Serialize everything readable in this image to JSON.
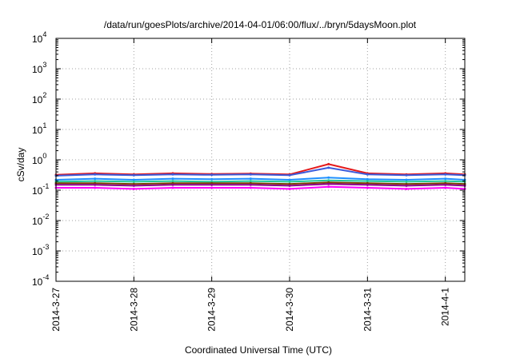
{
  "chart_data": {
    "type": "line",
    "title": "/data/run/goesPlots/archive/2014-04-01/06:00/flux/../bryn/5daysMoon.plot",
    "xlabel": "Coordinated Universal Time (UTC)",
    "ylabel": "cSv/day",
    "yscale": "log",
    "ylim": [
      0.0001,
      10000
    ],
    "xlim": [
      "2014-3-27",
      "2014-4-1 06:00"
    ],
    "grid": true,
    "x_ticks": [
      "2014-3-27",
      "2014-3-28",
      "2014-3-29",
      "2014-3-30",
      "2014-3-31",
      "2014-4-1"
    ],
    "y_ticks": [
      {
        "base": "10",
        "exp": "-4"
      },
      {
        "base": "10",
        "exp": "-3"
      },
      {
        "base": "10",
        "exp": "-2"
      },
      {
        "base": "10",
        "exp": "-1"
      },
      {
        "base": "10",
        "exp": "0"
      },
      {
        "base": "10",
        "exp": "1"
      },
      {
        "base": "10",
        "exp": "2"
      },
      {
        "base": "10",
        "exp": "3"
      },
      {
        "base": "10",
        "exp": "4"
      }
    ],
    "x_days": [
      "2014-3-27",
      "2014-3-27 12:00",
      "2014-3-28",
      "2014-3-28 12:00",
      "2014-3-29",
      "2014-3-29 12:00",
      "2014-3-30",
      "2014-3-30 12:00",
      "2014-3-31",
      "2014-3-31 12:00",
      "2014-4-1",
      "2014-4-1 06:00"
    ],
    "series": [
      {
        "color": "#e41a1c",
        "values": [
          0.32,
          0.36,
          0.33,
          0.36,
          0.34,
          0.35,
          0.33,
          0.72,
          0.36,
          0.33,
          0.36,
          0.33
        ]
      },
      {
        "color": "#3b5bdb",
        "values": [
          0.3,
          0.33,
          0.31,
          0.33,
          0.32,
          0.33,
          0.31,
          0.55,
          0.33,
          0.31,
          0.33,
          0.31
        ]
      },
      {
        "color": "#1e90ff",
        "values": [
          0.22,
          0.24,
          0.22,
          0.24,
          0.23,
          0.24,
          0.22,
          0.26,
          0.23,
          0.22,
          0.24,
          0.22
        ]
      },
      {
        "color": "#20c997",
        "values": [
          0.19,
          0.2,
          0.19,
          0.2,
          0.19,
          0.2,
          0.19,
          0.21,
          0.2,
          0.19,
          0.2,
          0.19
        ]
      },
      {
        "color": "#7b3f00",
        "values": [
          0.17,
          0.17,
          0.16,
          0.17,
          0.17,
          0.17,
          0.16,
          0.18,
          0.17,
          0.16,
          0.17,
          0.16
        ]
      },
      {
        "color": "#8b008b",
        "values": [
          0.15,
          0.15,
          0.14,
          0.15,
          0.15,
          0.15,
          0.14,
          0.16,
          0.15,
          0.14,
          0.15,
          0.14
        ]
      },
      {
        "color": "#ff00ff",
        "values": [
          0.12,
          0.12,
          0.11,
          0.12,
          0.12,
          0.12,
          0.11,
          0.13,
          0.12,
          0.11,
          0.12,
          0.11
        ]
      }
    ]
  }
}
